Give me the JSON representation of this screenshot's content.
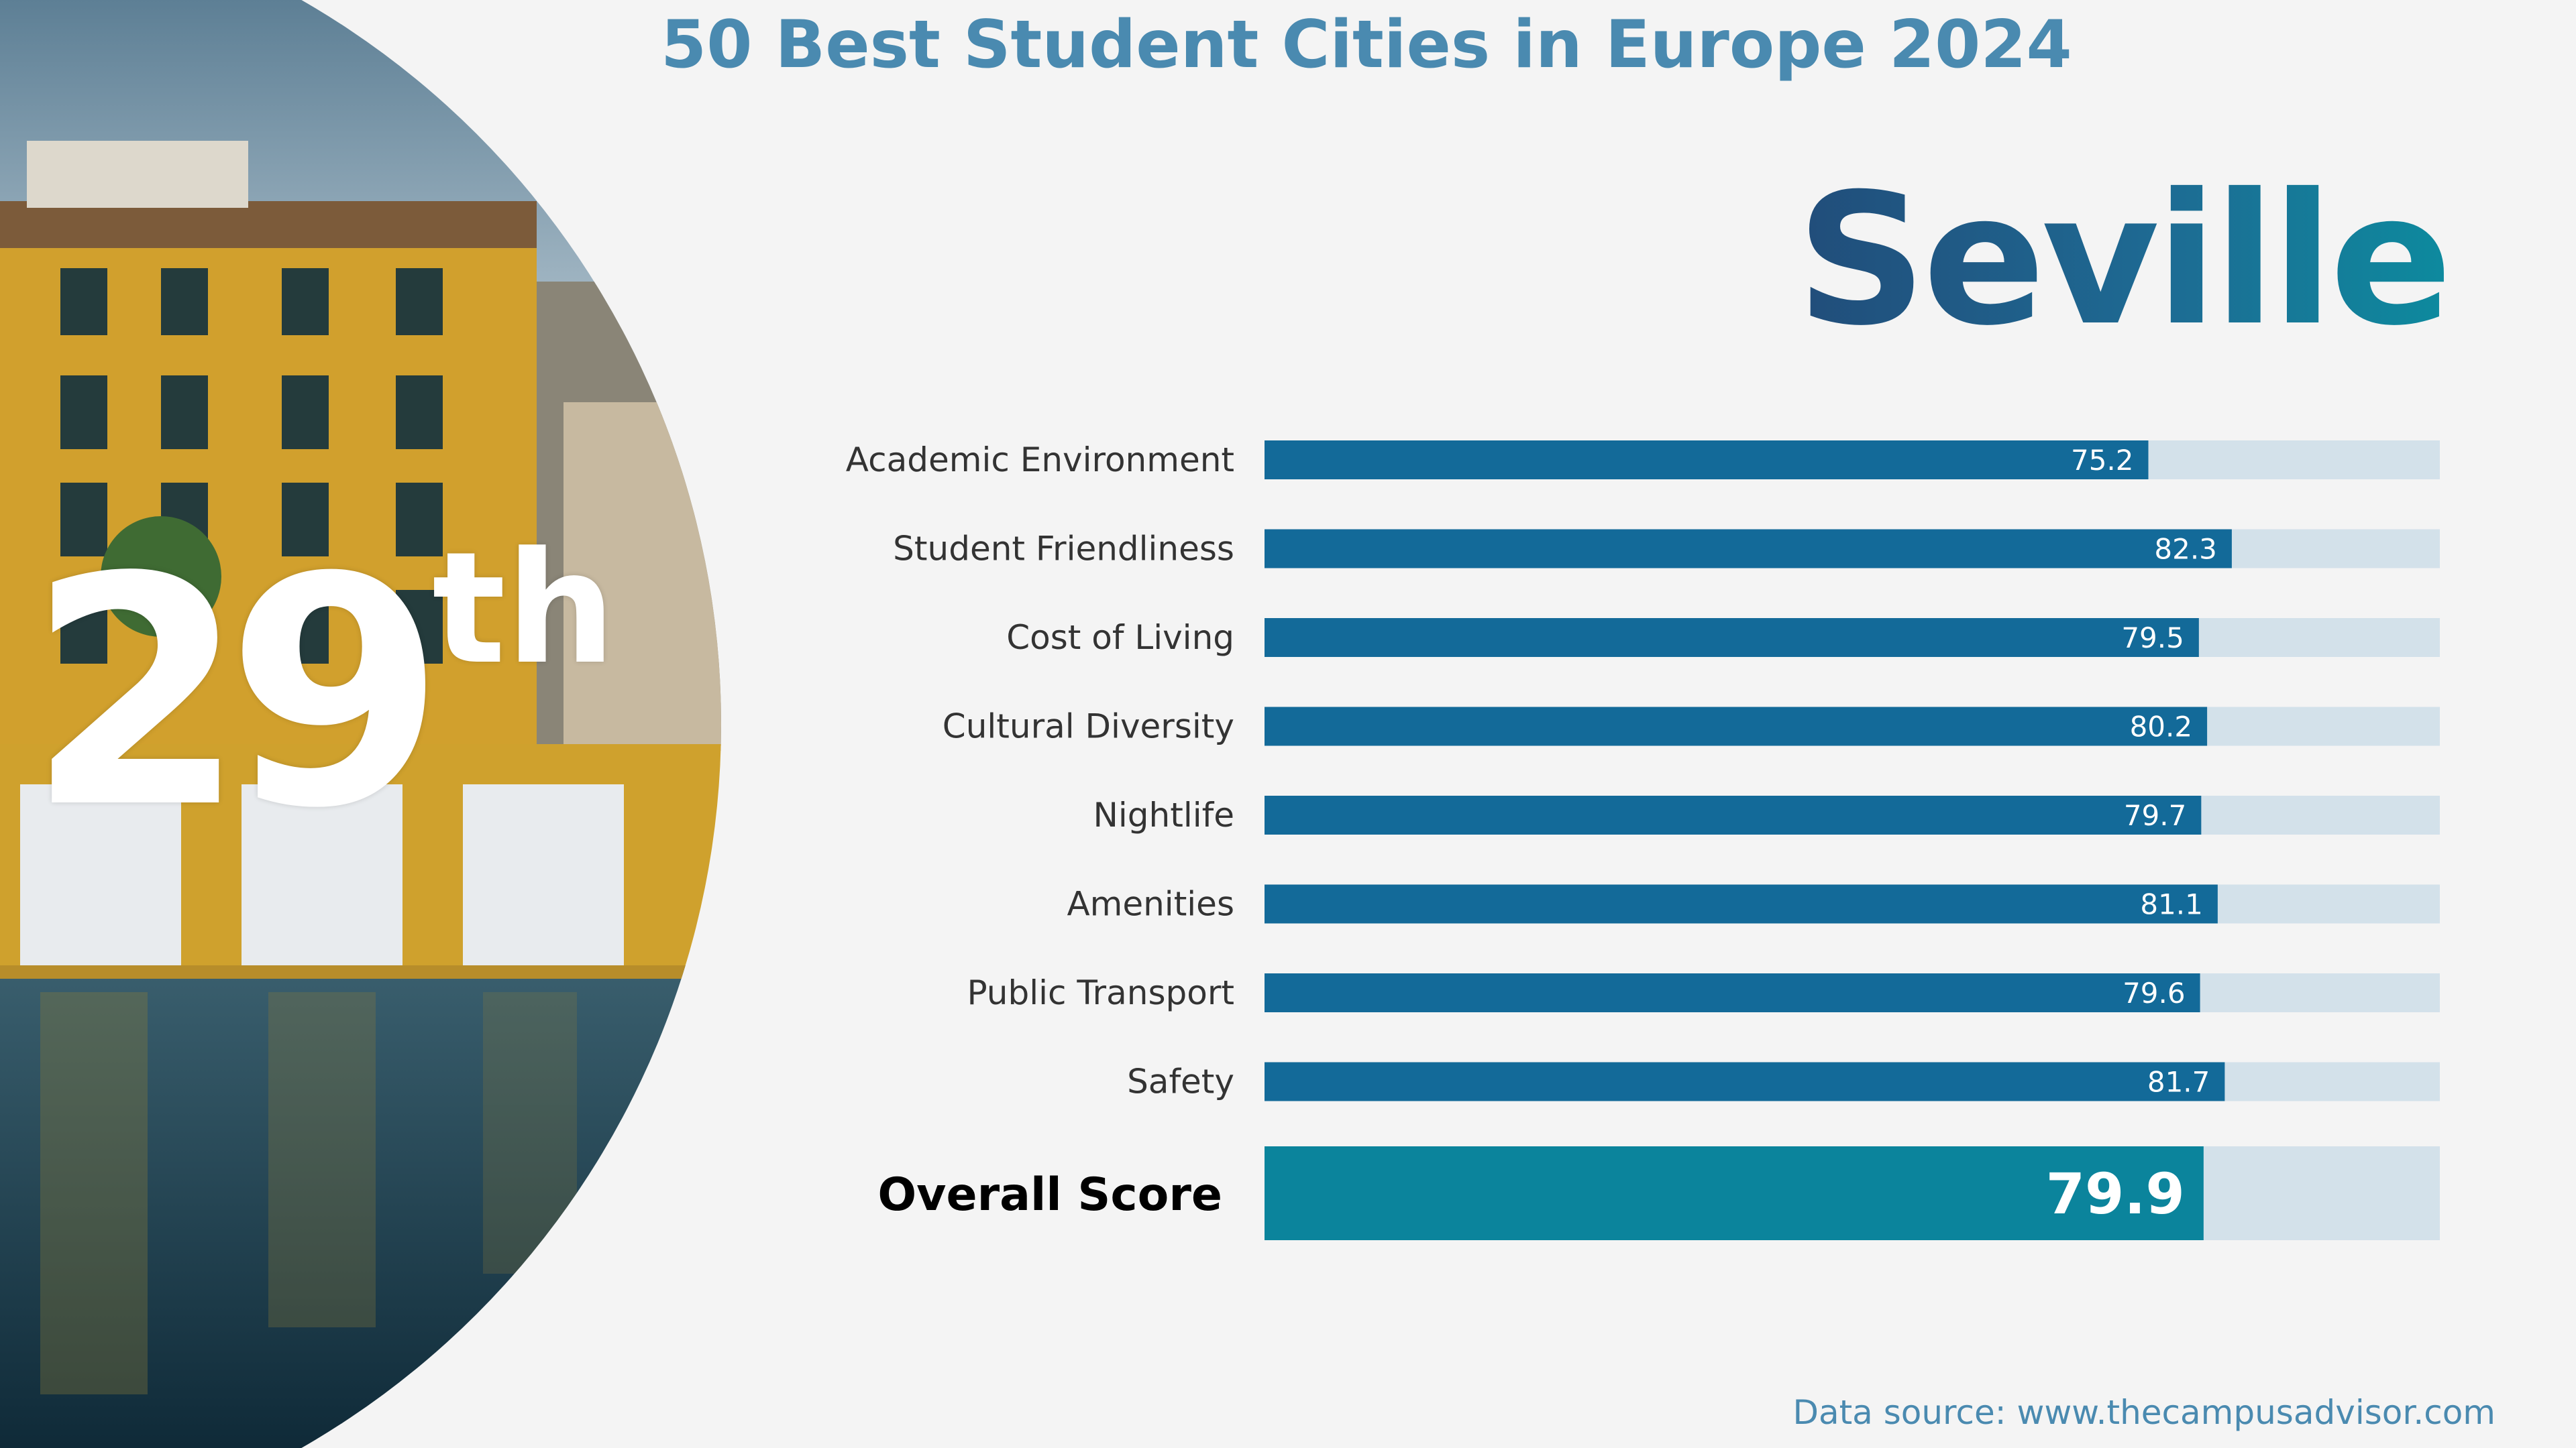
{
  "header": {
    "title": "50 Best Student Cities in Europe 2024",
    "city": "Seville"
  },
  "rank": {
    "number": "29",
    "suffix": "th"
  },
  "footer": {
    "source": "Data source: www.thecampusadvisor.com"
  },
  "colors": {
    "bar": "#136a99",
    "overall_bar": "#0b849c",
    "track": "#d3e1ea",
    "label": "#333333",
    "title": "#4a8ab0"
  },
  "chart_data": {
    "type": "bar",
    "orientation": "horizontal",
    "xlim": [
      0,
      100
    ],
    "categories": [
      "Academic Environment",
      "Student Friendliness",
      "Cost of Living",
      "Cultural Diversity",
      "Nightlife",
      "Amenities",
      "Public Transport",
      "Safety"
    ],
    "values": [
      75.2,
      82.3,
      79.5,
      80.2,
      79.7,
      81.1,
      79.6,
      81.7
    ],
    "value_labels": [
      "75.2",
      "82.3",
      "79.5",
      "80.2",
      "79.7",
      "81.1",
      "79.6",
      "81.7"
    ],
    "overall": {
      "label": "Overall Score",
      "value": 79.9,
      "value_label": "79.9"
    }
  }
}
